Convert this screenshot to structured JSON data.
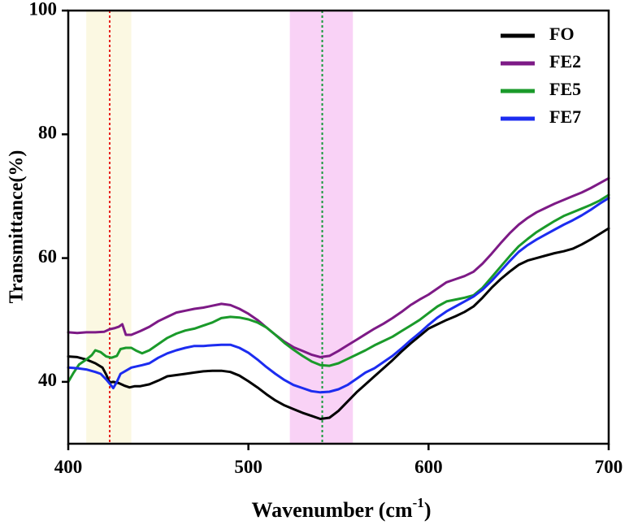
{
  "chart_data": {
    "type": "line",
    "title": "",
    "xlabel": "Wavenumber (cm",
    "xlabel_sup": "-1",
    "xlabel_close": ")",
    "ylabel": "Transmittance(%)",
    "xlim": [
      400,
      700
    ],
    "ylim": [
      30,
      100
    ],
    "xticks": [
      400,
      500,
      600,
      700
    ],
    "yticks": [
      40,
      60,
      80,
      100
    ],
    "grid": false,
    "legend_position": "top-right",
    "highlight_bands": [
      {
        "x_range": [
          410,
          435
        ],
        "color": "#fbf8e2",
        "marker_x": 423,
        "marker_color": "#e8231e"
      },
      {
        "x_range": [
          523,
          558
        ],
        "color": "#f9d2f6",
        "marker_x": 541,
        "marker_color": "#169a3a"
      }
    ],
    "series": [
      {
        "name": "FO",
        "color": "#000000",
        "points": [
          [
            400,
            44.1
          ],
          [
            405,
            44.0
          ],
          [
            410,
            43.6
          ],
          [
            415,
            43.0
          ],
          [
            419,
            42.3
          ],
          [
            421,
            41.2
          ],
          [
            423,
            39.9
          ],
          [
            425,
            40.0
          ],
          [
            428,
            39.8
          ],
          [
            431,
            39.4
          ],
          [
            434,
            39.1
          ],
          [
            437,
            39.3
          ],
          [
            440,
            39.3
          ],
          [
            445,
            39.6
          ],
          [
            450,
            40.2
          ],
          [
            455,
            40.9
          ],
          [
            460,
            41.1
          ],
          [
            465,
            41.3
          ],
          [
            470,
            41.5
          ],
          [
            475,
            41.7
          ],
          [
            480,
            41.8
          ],
          [
            485,
            41.8
          ],
          [
            490,
            41.6
          ],
          [
            495,
            41.0
          ],
          [
            500,
            40.1
          ],
          [
            505,
            39.1
          ],
          [
            510,
            38.0
          ],
          [
            515,
            37.0
          ],
          [
            520,
            36.2
          ],
          [
            525,
            35.6
          ],
          [
            530,
            35.0
          ],
          [
            535,
            34.5
          ],
          [
            540,
            34.0
          ],
          [
            545,
            34.2
          ],
          [
            550,
            35.3
          ],
          [
            555,
            36.8
          ],
          [
            560,
            38.3
          ],
          [
            565,
            39.6
          ],
          [
            570,
            40.9
          ],
          [
            575,
            42.2
          ],
          [
            580,
            43.5
          ],
          [
            585,
            44.9
          ],
          [
            590,
            46.2
          ],
          [
            595,
            47.4
          ],
          [
            600,
            48.6
          ],
          [
            605,
            49.3
          ],
          [
            610,
            50.0
          ],
          [
            615,
            50.6
          ],
          [
            620,
            51.3
          ],
          [
            625,
            52.2
          ],
          [
            630,
            53.6
          ],
          [
            635,
            55.2
          ],
          [
            640,
            56.6
          ],
          [
            645,
            57.8
          ],
          [
            650,
            58.9
          ],
          [
            655,
            59.6
          ],
          [
            660,
            60.0
          ],
          [
            665,
            60.4
          ],
          [
            670,
            60.8
          ],
          [
            675,
            61.1
          ],
          [
            680,
            61.5
          ],
          [
            685,
            62.2
          ],
          [
            690,
            63.0
          ],
          [
            695,
            63.9
          ],
          [
            700,
            64.8
          ]
        ]
      },
      {
        "name": "FE2",
        "color": "#7d1a86",
        "points": [
          [
            400,
            48.0
          ],
          [
            405,
            47.9
          ],
          [
            410,
            48.0
          ],
          [
            415,
            48.0
          ],
          [
            420,
            48.1
          ],
          [
            423,
            48.5
          ],
          [
            426,
            48.7
          ],
          [
            428,
            48.9
          ],
          [
            430,
            49.3
          ],
          [
            432,
            47.6
          ],
          [
            435,
            47.6
          ],
          [
            440,
            48.2
          ],
          [
            445,
            48.9
          ],
          [
            450,
            49.8
          ],
          [
            455,
            50.5
          ],
          [
            460,
            51.2
          ],
          [
            465,
            51.5
          ],
          [
            470,
            51.8
          ],
          [
            475,
            52.0
          ],
          [
            480,
            52.3
          ],
          [
            485,
            52.6
          ],
          [
            490,
            52.4
          ],
          [
            495,
            51.8
          ],
          [
            500,
            51.0
          ],
          [
            505,
            50.0
          ],
          [
            510,
            48.8
          ],
          [
            515,
            47.6
          ],
          [
            520,
            46.5
          ],
          [
            525,
            45.6
          ],
          [
            530,
            45.0
          ],
          [
            535,
            44.4
          ],
          [
            540,
            44.0
          ],
          [
            545,
            44.2
          ],
          [
            550,
            45.0
          ],
          [
            555,
            45.9
          ],
          [
            560,
            46.8
          ],
          [
            565,
            47.7
          ],
          [
            570,
            48.6
          ],
          [
            575,
            49.4
          ],
          [
            580,
            50.3
          ],
          [
            585,
            51.3
          ],
          [
            590,
            52.4
          ],
          [
            595,
            53.3
          ],
          [
            600,
            54.1
          ],
          [
            605,
            55.1
          ],
          [
            610,
            56.1
          ],
          [
            615,
            56.6
          ],
          [
            620,
            57.1
          ],
          [
            625,
            57.8
          ],
          [
            630,
            59.1
          ],
          [
            635,
            60.7
          ],
          [
            640,
            62.4
          ],
          [
            645,
            64.0
          ],
          [
            650,
            65.4
          ],
          [
            655,
            66.5
          ],
          [
            660,
            67.4
          ],
          [
            665,
            68.1
          ],
          [
            670,
            68.8
          ],
          [
            675,
            69.4
          ],
          [
            680,
            70.0
          ],
          [
            685,
            70.6
          ],
          [
            690,
            71.3
          ],
          [
            695,
            72.1
          ],
          [
            700,
            72.9
          ]
        ]
      },
      {
        "name": "FE5",
        "color": "#1a9a2a",
        "points": [
          [
            400,
            40.0
          ],
          [
            403,
            41.5
          ],
          [
            406,
            42.8
          ],
          [
            410,
            43.6
          ],
          [
            413,
            44.3
          ],
          [
            415,
            45.1
          ],
          [
            418,
            44.8
          ],
          [
            421,
            44.1
          ],
          [
            424,
            43.9
          ],
          [
            427,
            44.2
          ],
          [
            429,
            45.3
          ],
          [
            432,
            45.5
          ],
          [
            435,
            45.5
          ],
          [
            438,
            45.0
          ],
          [
            441,
            44.6
          ],
          [
            445,
            45.1
          ],
          [
            450,
            46.1
          ],
          [
            455,
            47.1
          ],
          [
            460,
            47.8
          ],
          [
            465,
            48.3
          ],
          [
            470,
            48.6
          ],
          [
            475,
            49.1
          ],
          [
            480,
            49.6
          ],
          [
            485,
            50.3
          ],
          [
            490,
            50.5
          ],
          [
            495,
            50.4
          ],
          [
            500,
            50.1
          ],
          [
            505,
            49.6
          ],
          [
            510,
            48.8
          ],
          [
            515,
            47.6
          ],
          [
            520,
            46.3
          ],
          [
            525,
            45.2
          ],
          [
            530,
            44.2
          ],
          [
            535,
            43.3
          ],
          [
            540,
            42.7
          ],
          [
            545,
            42.6
          ],
          [
            550,
            43.0
          ],
          [
            555,
            43.7
          ],
          [
            560,
            44.4
          ],
          [
            565,
            45.1
          ],
          [
            570,
            45.9
          ],
          [
            575,
            46.6
          ],
          [
            580,
            47.3
          ],
          [
            585,
            48.2
          ],
          [
            590,
            49.1
          ],
          [
            595,
            50.0
          ],
          [
            600,
            51.1
          ],
          [
            605,
            52.2
          ],
          [
            610,
            53.0
          ],
          [
            615,
            53.3
          ],
          [
            620,
            53.6
          ],
          [
            625,
            54.0
          ],
          [
            630,
            55.2
          ],
          [
            635,
            56.9
          ],
          [
            640,
            58.6
          ],
          [
            645,
            60.3
          ],
          [
            650,
            61.9
          ],
          [
            655,
            63.1
          ],
          [
            660,
            64.2
          ],
          [
            665,
            65.1
          ],
          [
            670,
            66.0
          ],
          [
            675,
            66.8
          ],
          [
            680,
            67.4
          ],
          [
            685,
            68.0
          ],
          [
            690,
            68.6
          ],
          [
            695,
            69.3
          ],
          [
            700,
            70.2
          ]
        ]
      },
      {
        "name": "FE7",
        "color": "#1c2cf0",
        "points": [
          [
            400,
            42.3
          ],
          [
            405,
            42.2
          ],
          [
            410,
            42.0
          ],
          [
            415,
            41.6
          ],
          [
            418,
            41.3
          ],
          [
            421,
            40.4
          ],
          [
            423,
            39.7
          ],
          [
            425,
            39.0
          ],
          [
            427,
            40.0
          ],
          [
            429,
            41.3
          ],
          [
            432,
            41.8
          ],
          [
            435,
            42.3
          ],
          [
            438,
            42.5
          ],
          [
            441,
            42.7
          ],
          [
            445,
            43.0
          ],
          [
            450,
            43.9
          ],
          [
            455,
            44.6
          ],
          [
            460,
            45.1
          ],
          [
            465,
            45.5
          ],
          [
            470,
            45.8
          ],
          [
            475,
            45.8
          ],
          [
            480,
            45.9
          ],
          [
            485,
            46.0
          ],
          [
            490,
            46.0
          ],
          [
            495,
            45.5
          ],
          [
            500,
            44.7
          ],
          [
            505,
            43.6
          ],
          [
            510,
            42.4
          ],
          [
            515,
            41.3
          ],
          [
            520,
            40.3
          ],
          [
            525,
            39.5
          ],
          [
            530,
            39.0
          ],
          [
            535,
            38.5
          ],
          [
            540,
            38.3
          ],
          [
            545,
            38.4
          ],
          [
            550,
            38.8
          ],
          [
            555,
            39.5
          ],
          [
            560,
            40.5
          ],
          [
            565,
            41.5
          ],
          [
            570,
            42.2
          ],
          [
            575,
            43.2
          ],
          [
            580,
            44.2
          ],
          [
            585,
            45.4
          ],
          [
            590,
            46.7
          ],
          [
            595,
            47.9
          ],
          [
            600,
            49.2
          ],
          [
            605,
            50.4
          ],
          [
            610,
            51.4
          ],
          [
            615,
            52.2
          ],
          [
            620,
            53.0
          ],
          [
            625,
            53.8
          ],
          [
            630,
            54.9
          ],
          [
            635,
            56.3
          ],
          [
            640,
            57.9
          ],
          [
            645,
            59.5
          ],
          [
            650,
            61.0
          ],
          [
            655,
            62.1
          ],
          [
            660,
            63.0
          ],
          [
            665,
            63.8
          ],
          [
            670,
            64.6
          ],
          [
            675,
            65.4
          ],
          [
            680,
            66.1
          ],
          [
            685,
            66.9
          ],
          [
            690,
            67.8
          ],
          [
            695,
            68.8
          ],
          [
            700,
            69.7
          ]
        ]
      }
    ]
  }
}
